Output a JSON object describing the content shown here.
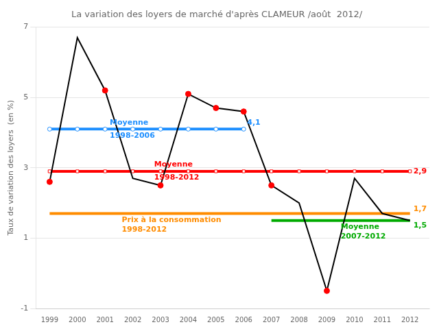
{
  "chart_data": {
    "type": "line",
    "title": "La variation des loyers de marché d'après CLAMEUR /août  2012/",
    "ylabel": "Taux de variation des loyers  (en %)",
    "x": [
      1999,
      2000,
      2001,
      2002,
      2003,
      2004,
      2005,
      2006,
      2007,
      2008,
      2009,
      2010,
      2011,
      2012
    ],
    "xlim": [
      1998.5,
      2012.7
    ],
    "xticks": [
      1999,
      2000,
      2001,
      2002,
      2003,
      2004,
      2005,
      2006,
      2007,
      2008,
      2009,
      2010,
      2011,
      2012
    ],
    "ylim": [
      -1,
      7
    ],
    "yticks": [
      -1,
      1,
      3,
      5,
      7
    ],
    "grid": "y",
    "series": [
      {
        "name": "Moyenne 1998-2006",
        "color": "#1e8fff",
        "marker": "circle",
        "values": [
          4.1,
          4.1,
          4.1,
          4.1,
          4.1,
          4.1,
          4.1,
          4.1,
          null,
          null,
          null,
          null,
          null,
          null
        ],
        "value_labels": [
          null,
          null,
          null,
          null,
          null,
          null,
          null,
          "4,1",
          null,
          null,
          null,
          null,
          null,
          null
        ]
      },
      {
        "name": "Moyenne 1998-2012",
        "color": "#ff0000",
        "marker": "square",
        "values": [
          2.9,
          2.9,
          2.9,
          2.9,
          2.9,
          2.9,
          2.9,
          2.9,
          2.9,
          2.9,
          2.9,
          2.9,
          2.9,
          2.9
        ],
        "value_labels": [
          null,
          null,
          null,
          null,
          null,
          null,
          null,
          null,
          null,
          null,
          null,
          null,
          null,
          "2,9"
        ]
      },
      {
        "name": "Prix à la consommation 1998-2012",
        "color": "#ff8c00",
        "values": [
          1.7,
          1.7,
          1.7,
          1.7,
          1.7,
          1.7,
          1.7,
          1.7,
          1.7,
          1.7,
          1.7,
          1.7,
          1.7,
          1.7
        ],
        "value_labels": [
          null,
          null,
          null,
          null,
          null,
          null,
          null,
          null,
          null,
          null,
          null,
          null,
          null,
          "1,7"
        ]
      },
      {
        "name": "Moyenne 2007-2012",
        "color": "#00aa00",
        "values": [
          null,
          null,
          null,
          null,
          null,
          null,
          null,
          null,
          1.5,
          1.5,
          1.5,
          1.5,
          1.5,
          1.5
        ],
        "value_labels": [
          null,
          null,
          null,
          null,
          null,
          null,
          null,
          null,
          null,
          null,
          null,
          null,
          null,
          "1,5"
        ]
      },
      {
        "color": "#000000",
        "values": [
          2.6,
          6.7,
          5.2,
          2.7,
          2.5,
          5.1,
          4.7,
          4.6,
          2.5,
          2.0,
          -0.5,
          2.7,
          1.7,
          1.5
        ]
      },
      {
        "type": "scatter",
        "color": "red",
        "marker": "circle",
        "values": [
          2.6,
          null,
          5.2,
          null,
          2.5,
          5.1,
          4.7,
          4.6,
          2.5,
          null,
          -0.5,
          null,
          null,
          null
        ]
      }
    ]
  }
}
